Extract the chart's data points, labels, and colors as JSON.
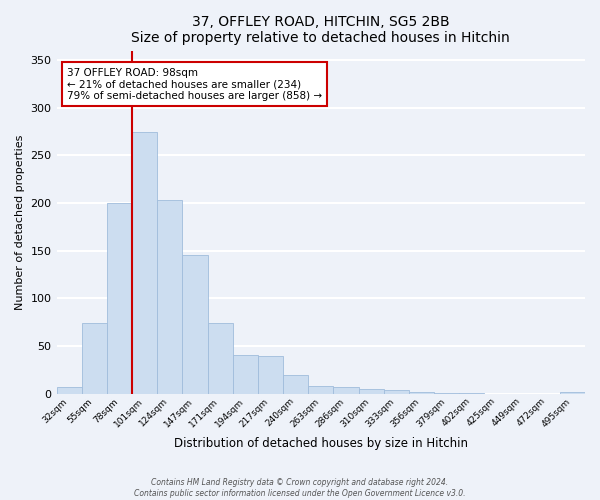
{
  "title": "37, OFFLEY ROAD, HITCHIN, SG5 2BB",
  "subtitle": "Size of property relative to detached houses in Hitchin",
  "xlabel": "Distribution of detached houses by size in Hitchin",
  "ylabel": "Number of detached properties",
  "bar_labels": [
    "32sqm",
    "55sqm",
    "78sqm",
    "101sqm",
    "124sqm",
    "147sqm",
    "171sqm",
    "194sqm",
    "217sqm",
    "240sqm",
    "263sqm",
    "286sqm",
    "310sqm",
    "333sqm",
    "356sqm",
    "379sqm",
    "402sqm",
    "425sqm",
    "449sqm",
    "472sqm",
    "495sqm"
  ],
  "bar_values": [
    7,
    74,
    200,
    275,
    203,
    146,
    74,
    41,
    40,
    20,
    8,
    7,
    5,
    4,
    2,
    1,
    1,
    0,
    0,
    0,
    2
  ],
  "bar_color": "#ccddf0",
  "bar_edge_color": "#a0bcdc",
  "ylim": [
    0,
    360
  ],
  "yticks": [
    0,
    50,
    100,
    150,
    200,
    250,
    300,
    350
  ],
  "vline_color": "#cc0000",
  "annotation_title": "37 OFFLEY ROAD: 98sqm",
  "annotation_line1": "← 21% of detached houses are smaller (234)",
  "annotation_line2": "79% of semi-detached houses are larger (858) →",
  "annotation_box_color": "#ffffff",
  "annotation_box_edge": "#cc0000",
  "footer1": "Contains HM Land Registry data © Crown copyright and database right 2024.",
  "footer2": "Contains public sector information licensed under the Open Government Licence v3.0.",
  "background_color": "#eef2f9",
  "grid_color": "#ffffff"
}
